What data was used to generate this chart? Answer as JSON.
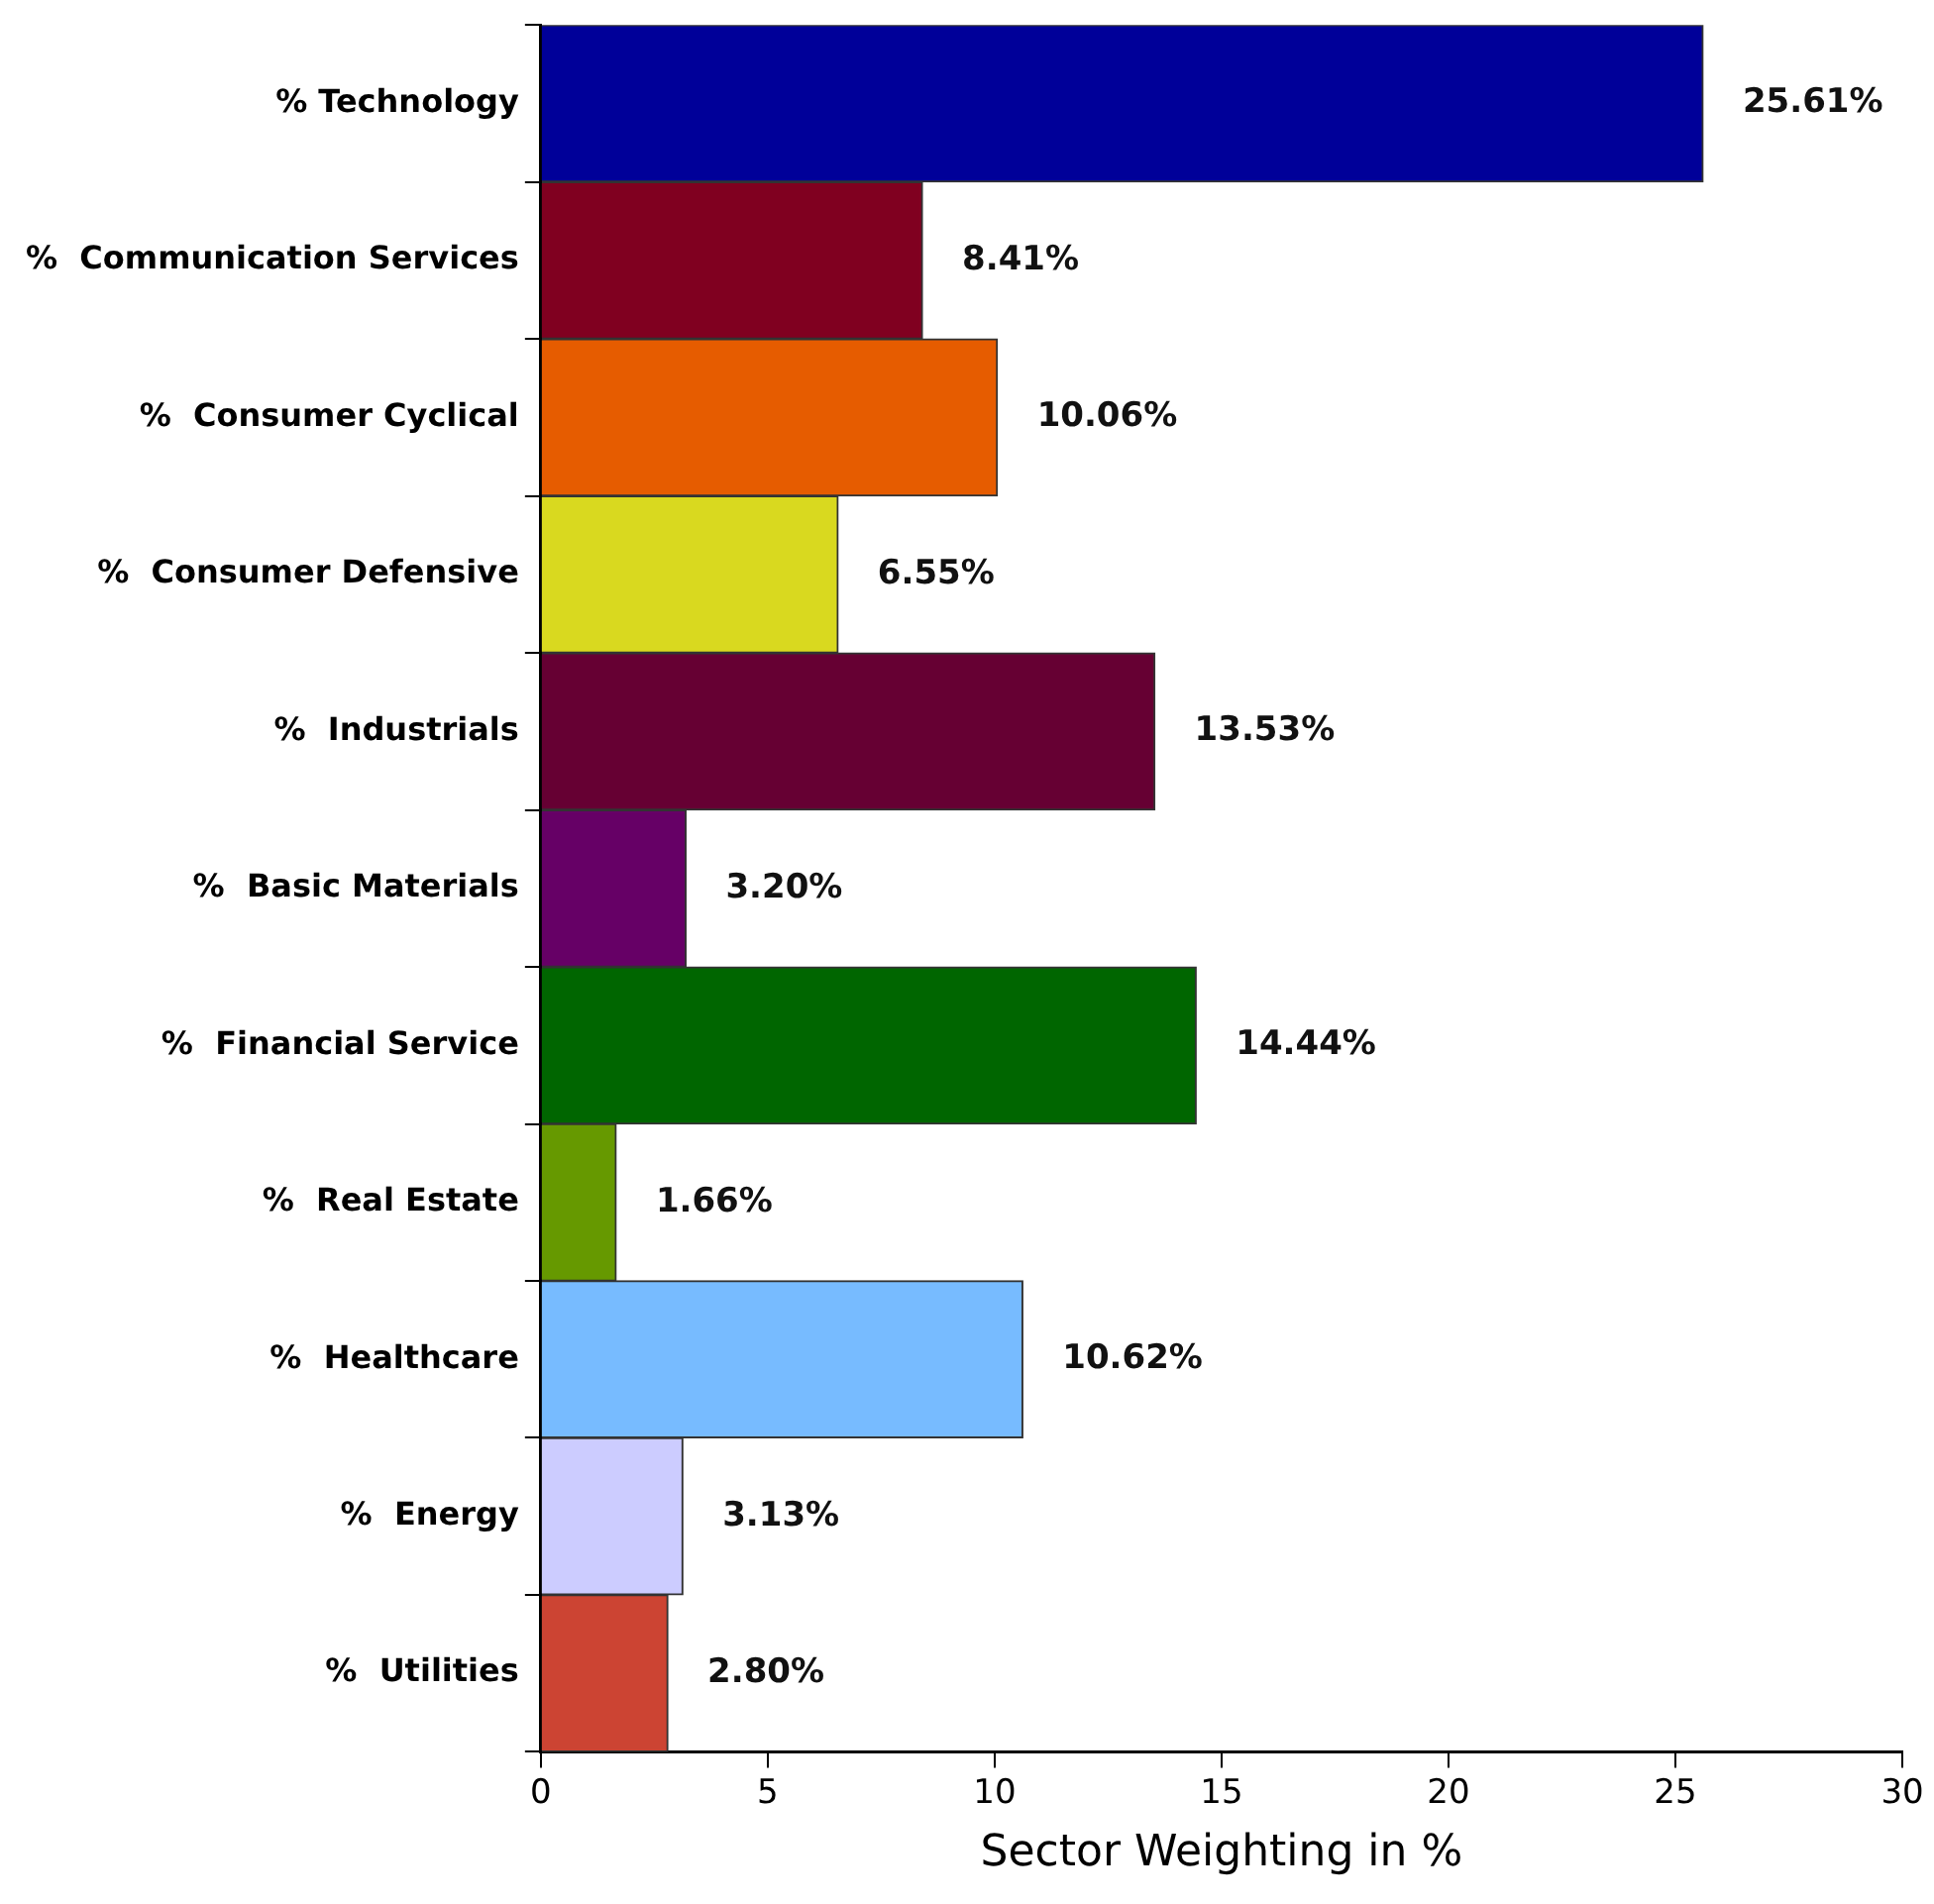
{
  "chart_data": {
    "type": "bar",
    "orientation": "horizontal",
    "xlabel": "Sector Weighting in %",
    "categories": [
      "% Technology",
      "%  Communication Services",
      "%  Consumer Cyclical",
      "%  Consumer Defensive",
      "%  Industrials",
      "%  Basic Materials",
      "%  Financial Service",
      "%  Real Estate",
      "%  Healthcare",
      "%  Energy",
      "%  Utilities"
    ],
    "values": [
      25.61,
      8.41,
      10.06,
      6.55,
      13.53,
      3.2,
      14.44,
      1.66,
      10.62,
      3.13,
      2.8
    ],
    "colors": [
      "#000099",
      "#800020",
      "#e65c00",
      "#d9d91f",
      "#660033",
      "#660066",
      "#006600",
      "#669900",
      "#77bbff",
      "#ccccff",
      "#cc4433"
    ],
    "value_labels": [
      "25.61%",
      "8.41%",
      "10.06%",
      "6.55%",
      "13.53%",
      "3.20%",
      "14.44%",
      "1.66%",
      "10.62%",
      "3.13%",
      "2.80%"
    ],
    "xlim": [
      0,
      30
    ],
    "xticks": [
      0,
      5,
      10,
      15,
      20,
      25,
      30
    ],
    "grid": false,
    "legend": false
  }
}
